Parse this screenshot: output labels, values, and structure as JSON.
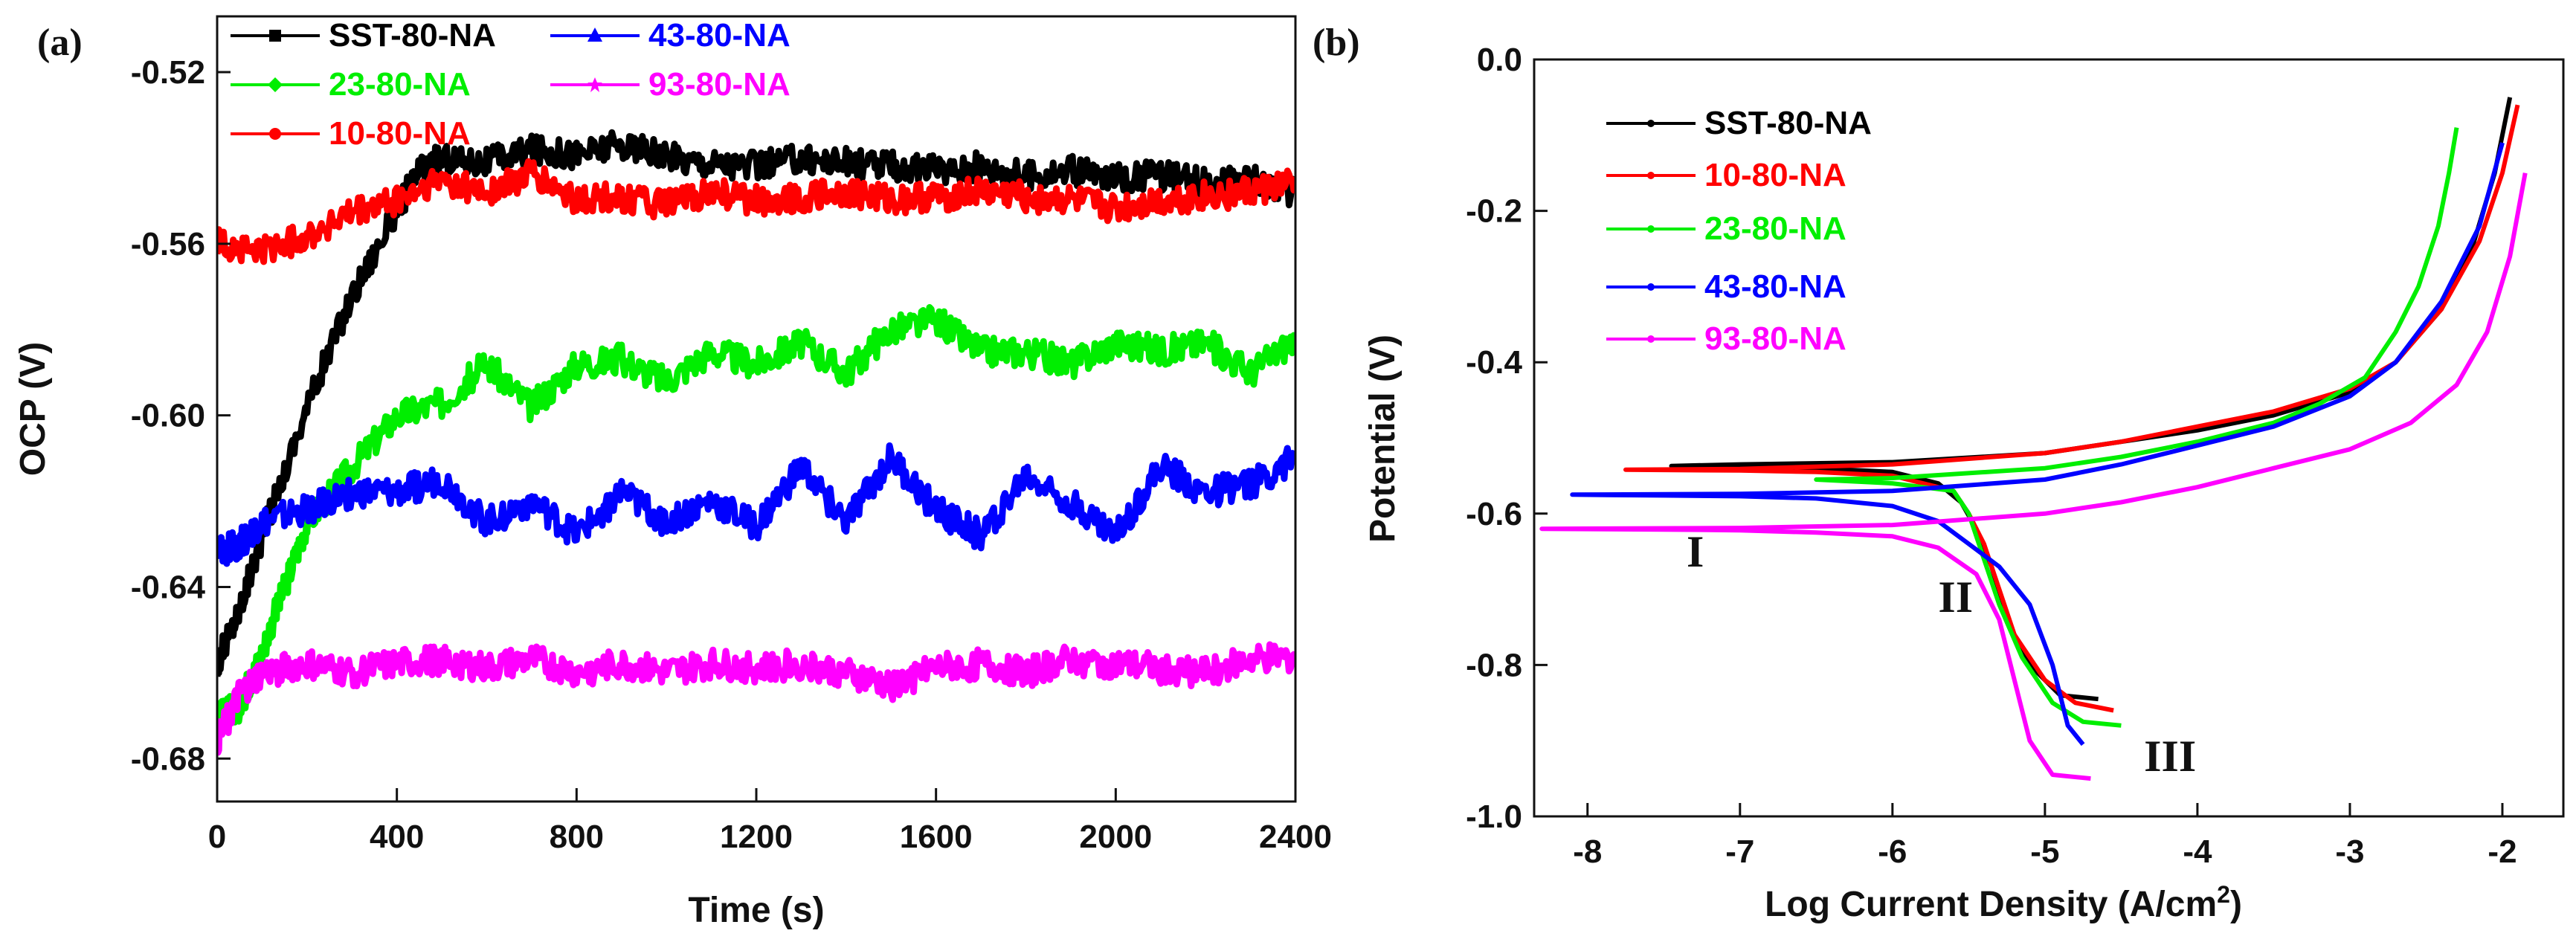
{
  "colors": {
    "black": "#000000",
    "red": "#ff0000",
    "green": "#00ee00",
    "blue": "#0000ff",
    "magenta": "#ff00ff"
  },
  "chart_data": [
    {
      "panel": "(a)",
      "type": "line",
      "xlabel": "Time (s)",
      "ylabel": "OCP (V)",
      "xlim": [
        0,
        2400
      ],
      "ylim": [
        -0.69,
        -0.507
      ],
      "xticks": [
        0,
        400,
        800,
        1200,
        1600,
        2000,
        2400
      ],
      "xtick_labels": [
        "0",
        "400",
        "800",
        "1200",
        "1600",
        "2000",
        "2400"
      ],
      "yticks": [
        -0.52,
        -0.56,
        -0.6,
        -0.64,
        -0.68
      ],
      "ytick_labels": [
        "-0.52",
        "-0.56",
        "-0.60",
        "-0.64",
        "-0.68"
      ],
      "legend": "top-left, two columns",
      "series": [
        {
          "name": "SST-80-NA",
          "color": "#000000",
          "marker": "square",
          "x": [
            0,
            50,
            100,
            200,
            300,
            400,
            450,
            500,
            600,
            700,
            800,
            900,
            1000,
            1100,
            1200,
            1300,
            1400,
            1500,
            1600,
            1700,
            1800,
            1900,
            2000,
            2100,
            2200,
            2300,
            2400
          ],
          "y": [
            -0.658,
            -0.645,
            -0.628,
            -0.598,
            -0.572,
            -0.552,
            -0.543,
            -0.54,
            -0.541,
            -0.538,
            -0.539,
            -0.537,
            -0.54,
            -0.541,
            -0.542,
            -0.54,
            -0.541,
            -0.542,
            -0.543,
            -0.542,
            -0.544,
            -0.543,
            -0.545,
            -0.544,
            -0.546,
            -0.545,
            -0.548
          ]
        },
        {
          "name": "10-80-NA",
          "color": "#ff0000",
          "marker": "circle",
          "x": [
            0,
            100,
            200,
            300,
            400,
            500,
            600,
            700,
            800,
            900,
            1000,
            1100,
            1200,
            1300,
            1400,
            1500,
            1600,
            1700,
            1800,
            1900,
            2000,
            2100,
            2200,
            2300,
            2400
          ],
          "y": [
            -0.56,
            -0.562,
            -0.558,
            -0.553,
            -0.55,
            -0.545,
            -0.548,
            -0.544,
            -0.55,
            -0.549,
            -0.551,
            -0.548,
            -0.55,
            -0.549,
            -0.548,
            -0.55,
            -0.549,
            -0.548,
            -0.549,
            -0.55,
            -0.552,
            -0.55,
            -0.549,
            -0.548,
            -0.546
          ]
        },
        {
          "name": "23-80-NA",
          "color": "#00ee00",
          "marker": "diamond",
          "x": [
            0,
            50,
            100,
            150,
            200,
            300,
            400,
            500,
            600,
            700,
            800,
            900,
            1000,
            1100,
            1200,
            1300,
            1400,
            1500,
            1600,
            1700,
            1800,
            1900,
            2000,
            2100,
            2200,
            2300,
            2400
          ],
          "y": [
            -0.67,
            -0.668,
            -0.655,
            -0.64,
            -0.625,
            -0.612,
            -0.6,
            -0.597,
            -0.588,
            -0.598,
            -0.588,
            -0.587,
            -0.592,
            -0.585,
            -0.588,
            -0.583,
            -0.59,
            -0.58,
            -0.578,
            -0.585,
            -0.585,
            -0.588,
            -0.583,
            -0.585,
            -0.583,
            -0.59,
            -0.582
          ]
        },
        {
          "name": "43-80-NA",
          "color": "#0000ff",
          "marker": "triangle",
          "x": [
            0,
            50,
            100,
            200,
            300,
            400,
            500,
            600,
            700,
            800,
            900,
            1000,
            1100,
            1200,
            1300,
            1400,
            1500,
            1600,
            1700,
            1800,
            1900,
            2000,
            2100,
            2200,
            2300,
            2400
          ],
          "y": [
            -0.632,
            -0.63,
            -0.625,
            -0.622,
            -0.618,
            -0.618,
            -0.615,
            -0.625,
            -0.62,
            -0.628,
            -0.618,
            -0.625,
            -0.62,
            -0.626,
            -0.612,
            -0.625,
            -0.61,
            -0.622,
            -0.628,
            -0.614,
            -0.62,
            -0.628,
            -0.612,
            -0.618,
            -0.616,
            -0.61
          ]
        },
        {
          "name": "93-80-NA",
          "color": "#ff00ff",
          "marker": "star",
          "x": [
            0,
            50,
            100,
            200,
            300,
            400,
            500,
            600,
            700,
            800,
            900,
            1000,
            1100,
            1200,
            1300,
            1400,
            1500,
            1600,
            1700,
            1800,
            1900,
            2000,
            2100,
            2200,
            2300,
            2400
          ],
          "y": [
            -0.676,
            -0.665,
            -0.66,
            -0.658,
            -0.66,
            -0.658,
            -0.657,
            -0.659,
            -0.657,
            -0.66,
            -0.658,
            -0.66,
            -0.658,
            -0.659,
            -0.658,
            -0.66,
            -0.663,
            -0.659,
            -0.658,
            -0.66,
            -0.657,
            -0.658,
            -0.659,
            -0.66,
            -0.657,
            -0.656
          ]
        }
      ]
    },
    {
      "panel": "(b)",
      "type": "line",
      "xlabel": "Log Current Density (A/cm²)",
      "ylabel": "Potential (V)",
      "xlim": [
        -8.35,
        -1.6
      ],
      "ylim": [
        -1.0,
        0.0
      ],
      "xticks": [
        -8,
        -7,
        -6,
        -5,
        -4,
        -3,
        -2
      ],
      "xtick_labels": [
        "-8",
        "-7",
        "-6",
        "-5",
        "-4",
        "-3",
        "-2"
      ],
      "yticks": [
        0.0,
        -0.2,
        -0.4,
        -0.6,
        -0.8,
        -1.0
      ],
      "ytick_labels": [
        "0.0",
        "-0.2",
        "-0.4",
        "-0.6",
        "-0.8",
        "-1.0"
      ],
      "legend": "top-left",
      "annotations": [
        {
          "text": "I",
          "x": -7.35,
          "y": -0.67
        },
        {
          "text": "II",
          "x": -5.7,
          "y": -0.73
        },
        {
          "text": "III",
          "x": -4.35,
          "y": -0.94
        }
      ],
      "series": [
        {
          "name": "SST-80-NA",
          "color": "#000000",
          "x": [
            -4.65,
            -4.9,
            -5.1,
            -5.25,
            -5.35,
            -5.45,
            -5.55,
            -5.7,
            -6.0,
            -6.5,
            -7.0,
            -7.45,
            -7.0,
            -6.0,
            -5.0,
            -4.5,
            -4.0,
            -3.5,
            -3.0,
            -2.7,
            -2.4,
            -2.2,
            -2.05,
            -1.95
          ],
          "y": [
            -0.845,
            -0.84,
            -0.8,
            -0.74,
            -0.67,
            -0.62,
            -0.585,
            -0.56,
            -0.545,
            -0.54,
            -0.538,
            -0.537,
            -0.535,
            -0.532,
            -0.52,
            -0.505,
            -0.49,
            -0.47,
            -0.44,
            -0.4,
            -0.33,
            -0.25,
            -0.15,
            -0.05
          ]
        },
        {
          "name": "10-80-NA",
          "color": "#ff0000",
          "x": [
            -4.55,
            -4.8,
            -5.0,
            -5.2,
            -5.3,
            -5.4,
            -5.5,
            -5.6,
            -6.0,
            -6.5,
            -7.0,
            -7.75,
            -7.0,
            -6.0,
            -5.0,
            -4.5,
            -4.0,
            -3.5,
            -3.0,
            -2.7,
            -2.4,
            -2.15,
            -2.0,
            -1.9
          ],
          "y": [
            -0.86,
            -0.85,
            -0.82,
            -0.76,
            -0.7,
            -0.64,
            -0.6,
            -0.57,
            -0.55,
            -0.545,
            -0.543,
            -0.542,
            -0.541,
            -0.535,
            -0.52,
            -0.505,
            -0.485,
            -0.465,
            -0.435,
            -0.4,
            -0.33,
            -0.24,
            -0.15,
            -0.06
          ]
        },
        {
          "name": "23-80-NA",
          "color": "#00ee00",
          "x": [
            -4.5,
            -4.75,
            -4.95,
            -5.15,
            -5.3,
            -5.4,
            -5.5,
            -5.6,
            -6.0,
            -6.5,
            -6.0,
            -5.0,
            -4.5,
            -4.0,
            -3.5,
            -3.2,
            -2.9,
            -2.7,
            -2.55,
            -2.42,
            -2.35,
            -2.3
          ],
          "y": [
            -0.88,
            -0.875,
            -0.85,
            -0.79,
            -0.72,
            -0.66,
            -0.6,
            -0.57,
            -0.56,
            -0.555,
            -0.553,
            -0.54,
            -0.525,
            -0.505,
            -0.48,
            -0.455,
            -0.42,
            -0.36,
            -0.3,
            -0.22,
            -0.15,
            -0.09
          ]
        },
        {
          "name": "43-80-NA",
          "color": "#0000ff",
          "x": [
            -4.75,
            -4.85,
            -4.95,
            -5.1,
            -5.3,
            -5.5,
            -5.7,
            -6.0,
            -6.5,
            -7.0,
            -7.5,
            -8.1,
            -7.0,
            -6.0,
            -5.0,
            -4.5,
            -4.0,
            -3.5,
            -3.0,
            -2.7,
            -2.4,
            -2.15,
            -2.0
          ],
          "y": [
            -0.905,
            -0.88,
            -0.8,
            -0.72,
            -0.67,
            -0.64,
            -0.61,
            -0.59,
            -0.58,
            -0.577,
            -0.576,
            -0.575,
            -0.574,
            -0.57,
            -0.555,
            -0.535,
            -0.51,
            -0.485,
            -0.445,
            -0.4,
            -0.32,
            -0.22,
            -0.11
          ]
        },
        {
          "name": "93-80-NA",
          "color": "#ff00ff",
          "x": [
            -4.7,
            -4.95,
            -5.1,
            -5.2,
            -5.3,
            -5.45,
            -5.7,
            -6.0,
            -6.5,
            -7.0,
            -7.5,
            -8.3,
            -7.0,
            -6.0,
            -5.0,
            -4.5,
            -4.0,
            -3.5,
            -3.0,
            -2.6,
            -2.3,
            -2.1,
            -1.95,
            -1.85
          ],
          "y": [
            -0.95,
            -0.945,
            -0.9,
            -0.82,
            -0.74,
            -0.68,
            -0.645,
            -0.63,
            -0.625,
            -0.622,
            -0.621,
            -0.62,
            -0.619,
            -0.615,
            -0.6,
            -0.585,
            -0.565,
            -0.54,
            -0.515,
            -0.48,
            -0.43,
            -0.36,
            -0.26,
            -0.15
          ]
        }
      ]
    }
  ]
}
